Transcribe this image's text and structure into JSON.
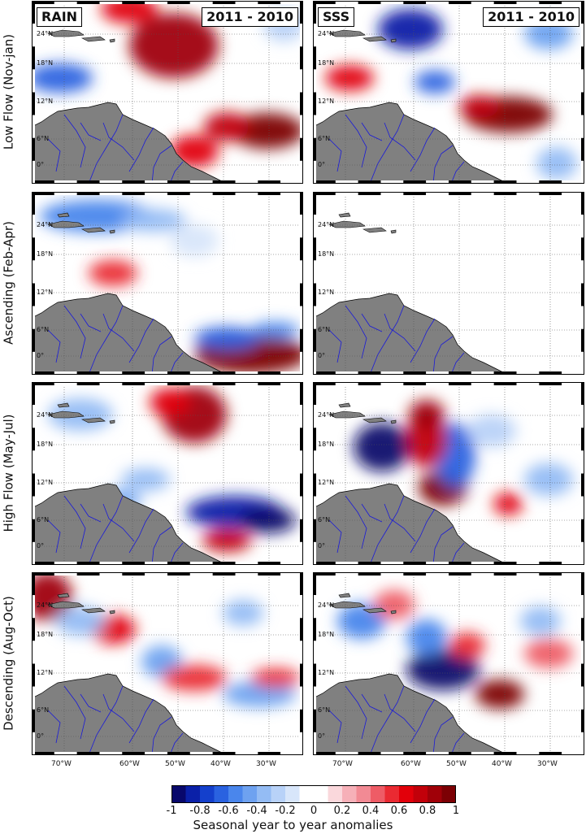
{
  "columns": [
    {
      "variable": "RAIN",
      "period": "2011 - 2010"
    },
    {
      "variable": "SSS",
      "period": "2011 - 2010"
    }
  ],
  "rows": [
    {
      "label": "Low Flow (Nov-jan)"
    },
    {
      "label": "Ascending (Feb-Apr)"
    },
    {
      "label": "High Flow (May-Jul)"
    },
    {
      "label": "Descending (Aug-Oct)"
    }
  ],
  "map": {
    "lat_ticks": [
      "24°N",
      "18°N",
      "12°N",
      "6°N",
      "0°"
    ],
    "lon_ticks": [
      "70°W",
      "60°W",
      "50°W",
      "40°W",
      "30°W"
    ],
    "land_color": "#808080",
    "river_color": "#1a1ad8",
    "grid_style": "dotted"
  },
  "colorbar": {
    "tick_labels": [
      "-1",
      "-0.8",
      "-0.6",
      "-0.4",
      "-0.2",
      "0",
      "0.2",
      "0.4",
      "0.6",
      "0.8",
      "1"
    ],
    "range": [
      -1,
      1
    ],
    "colors": [
      "#08086b",
      "#0a20a8",
      "#1440cc",
      "#2a62e0",
      "#4a86ec",
      "#6ea2f0",
      "#94bcf4",
      "#b8d2f8",
      "#d8e6fa",
      "#ffffff",
      "#ffffff",
      "#fad8dc",
      "#f6b0b8",
      "#f28a94",
      "#ee5c66",
      "#ea2a32",
      "#e2000a",
      "#c2000a",
      "#a00008",
      "#7c0004"
    ],
    "title": "Seasonal year to year anomalies"
  }
}
